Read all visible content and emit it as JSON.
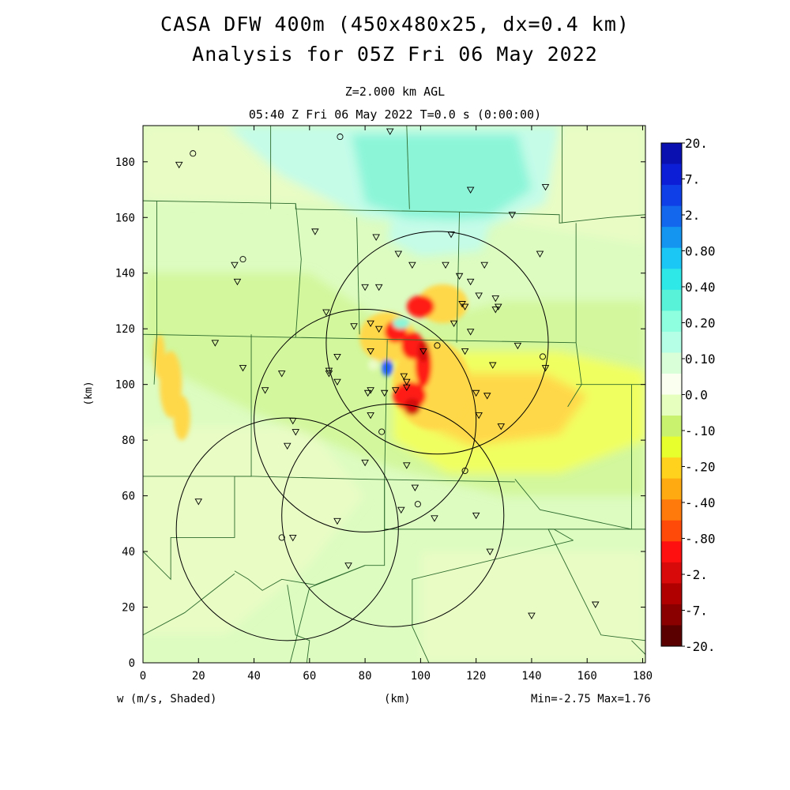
{
  "title": {
    "line1": "CASA DFW 400m (450x480x25, dx=0.4 km)",
    "line2": "Analysis for 05Z Fri 06 May 2022"
  },
  "subtitle": {
    "level": "Z=2.000 km AGL",
    "time": "05:40 Z Fri 06 May 2022    T=0.0 s (0:00:00)"
  },
  "footer": {
    "variable": "w (m/s, Shaded)",
    "xunit": "(km)",
    "range": "Min=-2.75 Max=1.76"
  },
  "axes": {
    "yunit": "(km)",
    "x_ticks": [
      "0",
      "20",
      "40",
      "60",
      "80",
      "100",
      "120",
      "140",
      "160",
      "180"
    ],
    "y_ticks": [
      "0",
      "20",
      "40",
      "60",
      "80",
      "100",
      "120",
      "140",
      "160",
      "180"
    ],
    "xlim": [
      0,
      181
    ],
    "ylim": [
      0,
      193
    ]
  },
  "colorbar": {
    "colors": [
      "#fafff0",
      "#d9ffd9",
      "#b4ffe6",
      "#8effdf",
      "#58f2d8",
      "#2ee8e8",
      "#1bc8f5",
      "#1495f0",
      "#1267ec",
      "#0f3fe6",
      "#0d1fd6",
      "#0a10b0"
    ],
    "neg_colors": [
      "#e6ffbf",
      "#c9f26f",
      "#e8ff2e",
      "#ffd21e",
      "#ffaa10",
      "#ff7a0a",
      "#ff4a0a",
      "#ff1010",
      "#d90a0a",
      "#b00000",
      "#8a0000",
      "#5a0000"
    ],
    "labels": [
      "20.",
      "7.",
      "2.",
      "0.80",
      "0.40",
      "0.20",
      "0.10",
      "0.0",
      "-.10",
      "-.20",
      "-.40",
      "-.80",
      "-2.",
      "-7.",
      "-20."
    ]
  },
  "map": {
    "colors": {
      "background": "#dcfcc0",
      "green_light": "#e8fcc4",
      "green_mid": "#d2f79c",
      "yellow": "#f0ff60",
      "orange": "#ffd84a",
      "red": "#ff1a14",
      "dark_red": "#d40a0a",
      "teal": "#8cf5d8",
      "teal_light": "#c4fce8",
      "blue": "#1a5aff",
      "county_line": "#2e6b2e",
      "circle_line": "#000000"
    },
    "radar_circles": [
      {
        "cx_km": 106,
        "cy_km": 115,
        "r_km": 40
      },
      {
        "cx_km": 80,
        "cy_km": 87,
        "r_km": 40
      },
      {
        "cx_km": 90,
        "cy_km": 53,
        "r_km": 40
      },
      {
        "cx_km": 52,
        "cy_km": 48,
        "r_km": 40
      }
    ],
    "stations": [
      {
        "x": 13,
        "y": 179,
        "s": "tri"
      },
      {
        "x": 18,
        "y": 183,
        "s": "circ"
      },
      {
        "x": 71,
        "y": 189,
        "s": "circ"
      },
      {
        "x": 89,
        "y": 191,
        "s": "tri"
      },
      {
        "x": 118,
        "y": 170,
        "s": "tri"
      },
      {
        "x": 145,
        "y": 171,
        "s": "tri"
      },
      {
        "x": 133,
        "y": 161,
        "s": "tri"
      },
      {
        "x": 62,
        "y": 155,
        "s": "tri"
      },
      {
        "x": 84,
        "y": 153,
        "s": "tri"
      },
      {
        "x": 111,
        "y": 154,
        "s": "tri"
      },
      {
        "x": 143,
        "y": 147,
        "s": "tri"
      },
      {
        "x": 92,
        "y": 147,
        "s": "tri"
      },
      {
        "x": 33,
        "y": 143,
        "s": "tri"
      },
      {
        "x": 36,
        "y": 145,
        "s": "circ"
      },
      {
        "x": 97,
        "y": 143,
        "s": "tri"
      },
      {
        "x": 109,
        "y": 143,
        "s": "tri"
      },
      {
        "x": 123,
        "y": 143,
        "s": "tri"
      },
      {
        "x": 34,
        "y": 137,
        "s": "tri"
      },
      {
        "x": 80,
        "y": 135,
        "s": "tri"
      },
      {
        "x": 85,
        "y": 135,
        "s": "tri"
      },
      {
        "x": 114,
        "y": 139,
        "s": "tri"
      },
      {
        "x": 118,
        "y": 137,
        "s": "tri"
      },
      {
        "x": 121,
        "y": 132,
        "s": "tri"
      },
      {
        "x": 127,
        "y": 131,
        "s": "tri"
      },
      {
        "x": 128,
        "y": 128,
        "s": "tri"
      },
      {
        "x": 127,
        "y": 127,
        "s": "tri"
      },
      {
        "x": 115,
        "y": 129,
        "s": "tri"
      },
      {
        "x": 116,
        "y": 128,
        "s": "tri"
      },
      {
        "x": 66,
        "y": 126,
        "s": "tri"
      },
      {
        "x": 76,
        "y": 121,
        "s": "tri"
      },
      {
        "x": 82,
        "y": 122,
        "s": "tri"
      },
      {
        "x": 85,
        "y": 120,
        "s": "tri"
      },
      {
        "x": 112,
        "y": 122,
        "s": "tri"
      },
      {
        "x": 118,
        "y": 119,
        "s": "tri"
      },
      {
        "x": 26,
        "y": 115,
        "s": "tri"
      },
      {
        "x": 135,
        "y": 114,
        "s": "tri"
      },
      {
        "x": 82,
        "y": 112,
        "s": "tri"
      },
      {
        "x": 101,
        "y": 112,
        "s": "tri"
      },
      {
        "x": 106,
        "y": 114,
        "s": "circ"
      },
      {
        "x": 116,
        "y": 112,
        "s": "tri"
      },
      {
        "x": 144,
        "y": 110,
        "s": "circ"
      },
      {
        "x": 70,
        "y": 110,
        "s": "tri"
      },
      {
        "x": 126,
        "y": 107,
        "s": "tri"
      },
      {
        "x": 145,
        "y": 106,
        "s": "tri"
      },
      {
        "x": 36,
        "y": 106,
        "s": "tri"
      },
      {
        "x": 50,
        "y": 104,
        "s": "tri"
      },
      {
        "x": 67,
        "y": 105,
        "s": "tri"
      },
      {
        "x": 67,
        "y": 104,
        "s": "tri"
      },
      {
        "x": 70,
        "y": 101,
        "s": "tri"
      },
      {
        "x": 94,
        "y": 103,
        "s": "tri"
      },
      {
        "x": 95,
        "y": 101,
        "s": "tri"
      },
      {
        "x": 95,
        "y": 99,
        "s": "tri"
      },
      {
        "x": 44,
        "y": 98,
        "s": "tri"
      },
      {
        "x": 81,
        "y": 97,
        "s": "tri"
      },
      {
        "x": 82,
        "y": 98,
        "s": "tri"
      },
      {
        "x": 87,
        "y": 97,
        "s": "tri"
      },
      {
        "x": 91,
        "y": 98,
        "s": "tri"
      },
      {
        "x": 120,
        "y": 97,
        "s": "tri"
      },
      {
        "x": 124,
        "y": 96,
        "s": "tri"
      },
      {
        "x": 121,
        "y": 89,
        "s": "tri"
      },
      {
        "x": 82,
        "y": 89,
        "s": "tri"
      },
      {
        "x": 54,
        "y": 87,
        "s": "tri"
      },
      {
        "x": 55,
        "y": 83,
        "s": "tri"
      },
      {
        "x": 86,
        "y": 83,
        "s": "circ"
      },
      {
        "x": 129,
        "y": 85,
        "s": "tri"
      },
      {
        "x": 52,
        "y": 78,
        "s": "tri"
      },
      {
        "x": 80,
        "y": 72,
        "s": "tri"
      },
      {
        "x": 95,
        "y": 71,
        "s": "tri"
      },
      {
        "x": 116,
        "y": 69,
        "s": "circ"
      },
      {
        "x": 98,
        "y": 63,
        "s": "tri"
      },
      {
        "x": 20,
        "y": 58,
        "s": "tri"
      },
      {
        "x": 99,
        "y": 57,
        "s": "circ"
      },
      {
        "x": 93,
        "y": 55,
        "s": "tri"
      },
      {
        "x": 120,
        "y": 53,
        "s": "tri"
      },
      {
        "x": 105,
        "y": 52,
        "s": "tri"
      },
      {
        "x": 70,
        "y": 51,
        "s": "tri"
      },
      {
        "x": 50,
        "y": 45,
        "s": "circ"
      },
      {
        "x": 54,
        "y": 45,
        "s": "tri"
      },
      {
        "x": 125,
        "y": 40,
        "s": "tri"
      },
      {
        "x": 74,
        "y": 35,
        "s": "tri"
      },
      {
        "x": 140,
        "y": 17,
        "s": "tri"
      },
      {
        "x": 163,
        "y": 21,
        "s": "tri"
      }
    ]
  }
}
